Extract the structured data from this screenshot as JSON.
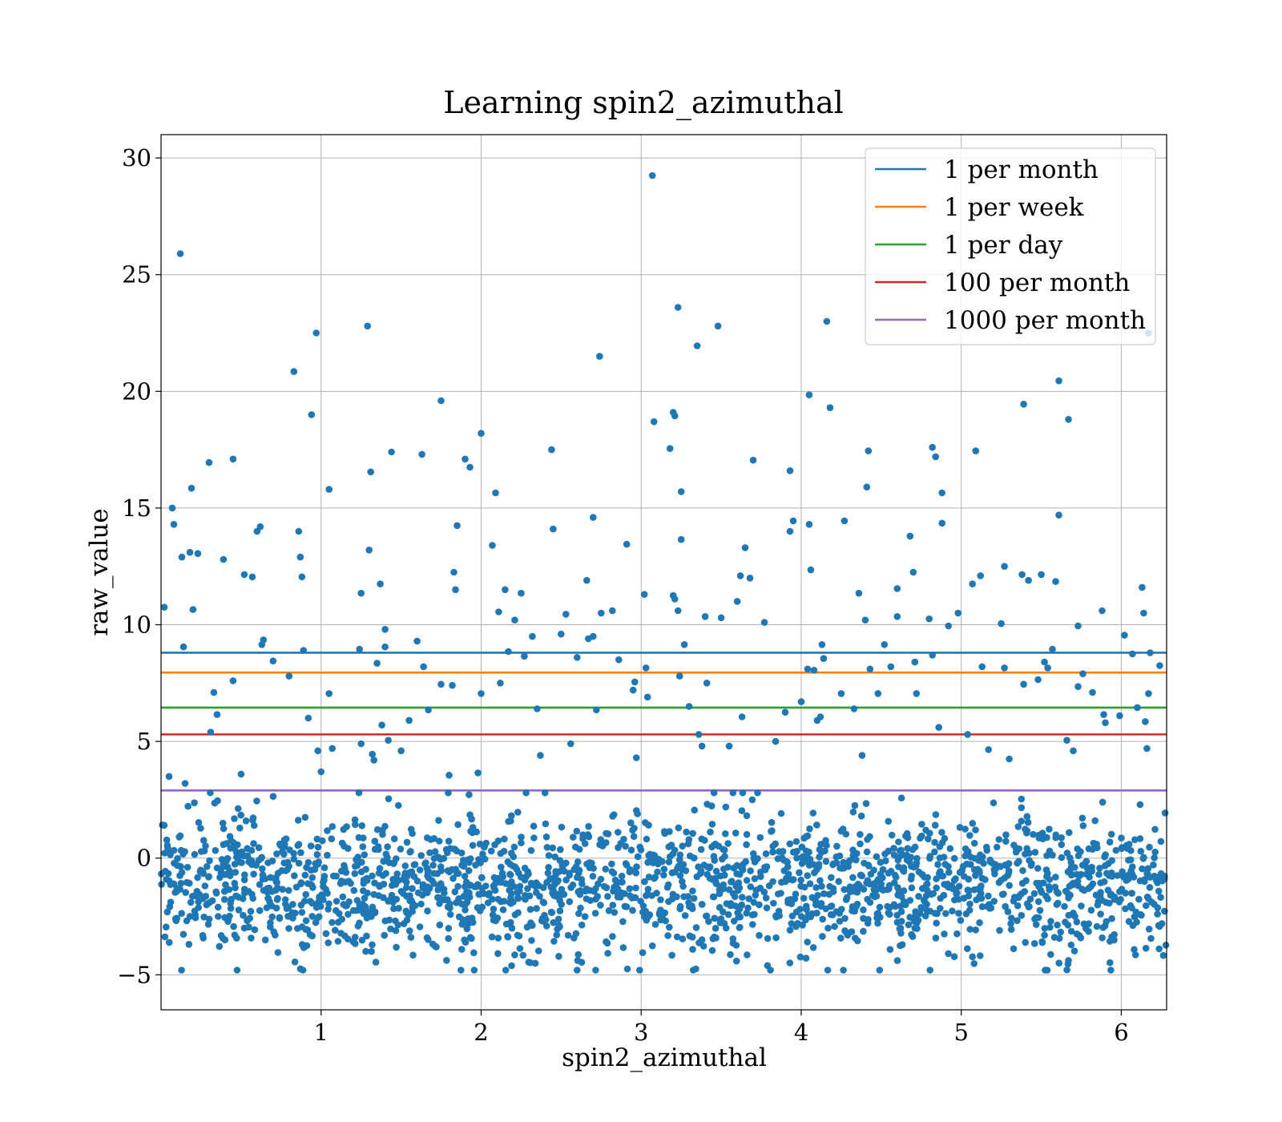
{
  "chart_data": {
    "type": "scatter",
    "title": "Learning spin2_azimuthal",
    "xlabel": "spin2_azimuthal",
    "ylabel": "raw_value",
    "xlim": [
      0,
      6.2832
    ],
    "ylim": [
      -6.5,
      31
    ],
    "xticks": [
      1,
      2,
      3,
      4,
      5,
      6
    ],
    "xtick_labels": [
      "1",
      "2",
      "3",
      "4",
      "5",
      "6"
    ],
    "yticks": [
      -5,
      0,
      5,
      10,
      15,
      20,
      25,
      30
    ],
    "ytick_labels": [
      "−5",
      "0",
      "5",
      "10",
      "15",
      "20",
      "25",
      "30"
    ],
    "grid": true,
    "legend_position": "top-right",
    "point_color": "#1f77b4",
    "thresholds": [
      {
        "name": "1 per month",
        "y": 8.8,
        "color": "#1f77b4"
      },
      {
        "name": "1 per week",
        "y": 7.95,
        "color": "#ff7f0e"
      },
      {
        "name": "1 per day",
        "y": 6.45,
        "color": "#2ca02c"
      },
      {
        "name": "100 per month",
        "y": 5.3,
        "color": "#d62728"
      },
      {
        "name": "1000 per month",
        "y": 2.9,
        "color": "#9467bd"
      }
    ],
    "outliers": [
      [
        0.02,
        10.75
      ],
      [
        0.05,
        3.5
      ],
      [
        0.07,
        15.0
      ],
      [
        0.08,
        14.3
      ],
      [
        0.12,
        25.9
      ],
      [
        0.13,
        12.9
      ],
      [
        0.14,
        9.05
      ],
      [
        0.15,
        3.2
      ],
      [
        0.18,
        13.1
      ],
      [
        0.19,
        15.85
      ],
      [
        0.2,
        10.65
      ],
      [
        0.23,
        13.05
      ],
      [
        0.3,
        16.95
      ],
      [
        0.31,
        5.4
      ],
      [
        0.33,
        7.1
      ],
      [
        0.35,
        6.15
      ],
      [
        0.39,
        12.8
      ],
      [
        0.45,
        7.6
      ],
      [
        0.45,
        17.1
      ],
      [
        0.5,
        3.6
      ],
      [
        0.52,
        12.15
      ],
      [
        0.57,
        12.05
      ],
      [
        0.6,
        14.0
      ],
      [
        0.62,
        14.2
      ],
      [
        0.63,
        9.15
      ],
      [
        0.64,
        9.35
      ],
      [
        0.7,
        8.45
      ],
      [
        0.8,
        7.8
      ],
      [
        0.83,
        20.85
      ],
      [
        0.86,
        14.0
      ],
      [
        0.87,
        12.9
      ],
      [
        0.88,
        12.05
      ],
      [
        0.89,
        8.9
      ],
      [
        0.92,
        6.0
      ],
      [
        0.94,
        19.0
      ],
      [
        0.97,
        22.5
      ],
      [
        0.98,
        4.6
      ],
      [
        1.0,
        3.7
      ],
      [
        1.05,
        15.8
      ],
      [
        1.05,
        7.05
      ],
      [
        1.07,
        4.7
      ],
      [
        1.24,
        8.95
      ],
      [
        1.25,
        11.35
      ],
      [
        1.25,
        4.9
      ],
      [
        1.29,
        22.8
      ],
      [
        1.3,
        13.2
      ],
      [
        1.31,
        16.55
      ],
      [
        1.32,
        4.45
      ],
      [
        1.33,
        4.2
      ],
      [
        1.35,
        8.35
      ],
      [
        1.37,
        11.75
      ],
      [
        1.38,
        5.7
      ],
      [
        1.4,
        9.8
      ],
      [
        1.4,
        9.05
      ],
      [
        1.42,
        5.05
      ],
      [
        1.44,
        17.4
      ],
      [
        1.5,
        4.6
      ],
      [
        1.55,
        5.9
      ],
      [
        1.6,
        9.3
      ],
      [
        1.63,
        17.3
      ],
      [
        1.64,
        8.2
      ],
      [
        1.67,
        6.35
      ],
      [
        1.75,
        19.6
      ],
      [
        1.75,
        7.45
      ],
      [
        1.8,
        3.55
      ],
      [
        1.82,
        7.4
      ],
      [
        1.83,
        12.25
      ],
      [
        1.84,
        11.5
      ],
      [
        1.85,
        14.25
      ],
      [
        1.9,
        17.1
      ],
      [
        1.93,
        16.75
      ],
      [
        1.98,
        3.65
      ],
      [
        2.0,
        7.05
      ],
      [
        2.0,
        18.2
      ],
      [
        2.07,
        13.4
      ],
      [
        2.09,
        15.65
      ],
      [
        2.11,
        10.55
      ],
      [
        2.12,
        7.5
      ],
      [
        2.15,
        11.5
      ],
      [
        2.17,
        8.85
      ],
      [
        2.21,
        10.2
      ],
      [
        2.25,
        11.35
      ],
      [
        2.27,
        8.65
      ],
      [
        2.32,
        9.5
      ],
      [
        2.35,
        6.4
      ],
      [
        2.37,
        4.4
      ],
      [
        2.44,
        17.5
      ],
      [
        2.45,
        14.1
      ],
      [
        2.5,
        9.6
      ],
      [
        2.53,
        10.45
      ],
      [
        2.56,
        4.9
      ],
      [
        2.6,
        8.6
      ],
      [
        2.66,
        11.9
      ],
      [
        2.67,
        9.4
      ],
      [
        2.7,
        9.5
      ],
      [
        2.7,
        14.6
      ],
      [
        2.72,
        6.35
      ],
      [
        2.74,
        21.5
      ],
      [
        2.75,
        10.5
      ],
      [
        2.82,
        10.6
      ],
      [
        2.86,
        8.5
      ],
      [
        2.91,
        13.45
      ],
      [
        2.95,
        7.2
      ],
      [
        2.96,
        7.55
      ],
      [
        2.97,
        4.3
      ],
      [
        3.02,
        11.3
      ],
      [
        3.03,
        8.15
      ],
      [
        3.04,
        6.9
      ],
      [
        3.07,
        29.25
      ],
      [
        3.08,
        18.7
      ],
      [
        3.18,
        17.55
      ],
      [
        3.2,
        11.25
      ],
      [
        3.2,
        19.1
      ],
      [
        3.21,
        11.1
      ],
      [
        3.21,
        18.95
      ],
      [
        3.23,
        23.6
      ],
      [
        3.23,
        10.6
      ],
      [
        3.24,
        7.8
      ],
      [
        3.25,
        15.7
      ],
      [
        3.25,
        13.65
      ],
      [
        3.27,
        9.15
      ],
      [
        3.3,
        6.5
      ],
      [
        3.35,
        21.95
      ],
      [
        3.36,
        5.3
      ],
      [
        3.38,
        4.8
      ],
      [
        3.4,
        10.35
      ],
      [
        3.41,
        7.5
      ],
      [
        3.48,
        22.8
      ],
      [
        3.5,
        10.3
      ],
      [
        3.55,
        4.8
      ],
      [
        3.6,
        11.0
      ],
      [
        3.62,
        12.1
      ],
      [
        3.63,
        6.05
      ],
      [
        3.65,
        13.3
      ],
      [
        3.68,
        12.0
      ],
      [
        3.7,
        17.05
      ],
      [
        3.77,
        10.1
      ],
      [
        3.84,
        5.0
      ],
      [
        3.9,
        6.25
      ],
      [
        3.93,
        16.6
      ],
      [
        3.93,
        14.0
      ],
      [
        3.95,
        14.45
      ],
      [
        4.0,
        6.7
      ],
      [
        4.04,
        8.1
      ],
      [
        4.05,
        19.85
      ],
      [
        4.05,
        14.3
      ],
      [
        4.06,
        12.35
      ],
      [
        4.08,
        8.05
      ],
      [
        4.1,
        5.9
      ],
      [
        4.12,
        6.05
      ],
      [
        4.13,
        9.15
      ],
      [
        4.14,
        8.55
      ],
      [
        4.16,
        23.0
      ],
      [
        4.18,
        19.3
      ],
      [
        4.25,
        7.05
      ],
      [
        4.27,
        14.45
      ],
      [
        4.33,
        6.4
      ],
      [
        4.36,
        11.35
      ],
      [
        4.38,
        4.4
      ],
      [
        4.4,
        10.2
      ],
      [
        4.41,
        15.9
      ],
      [
        4.42,
        17.45
      ],
      [
        4.43,
        8.1
      ],
      [
        4.48,
        7.05
      ],
      [
        4.52,
        9.15
      ],
      [
        4.56,
        8.2
      ],
      [
        4.6,
        11.55
      ],
      [
        4.6,
        10.35
      ],
      [
        4.68,
        13.8
      ],
      [
        4.7,
        12.25
      ],
      [
        4.71,
        8.4
      ],
      [
        4.72,
        7.05
      ],
      [
        4.8,
        10.25
      ],
      [
        4.82,
        8.7
      ],
      [
        4.82,
        17.6
      ],
      [
        4.84,
        17.2
      ],
      [
        4.86,
        5.6
      ],
      [
        4.88,
        15.65
      ],
      [
        4.88,
        14.35
      ],
      [
        4.92,
        9.95
      ],
      [
        4.98,
        10.5
      ],
      [
        5.04,
        5.3
      ],
      [
        5.07,
        11.75
      ],
      [
        5.09,
        17.45
      ],
      [
        5.12,
        12.1
      ],
      [
        5.13,
        8.2
      ],
      [
        5.17,
        4.65
      ],
      [
        5.25,
        10.05
      ],
      [
        5.27,
        12.5
      ],
      [
        5.27,
        8.15
      ],
      [
        5.3,
        4.25
      ],
      [
        5.38,
        12.15
      ],
      [
        5.39,
        19.45
      ],
      [
        5.39,
        7.45
      ],
      [
        5.42,
        11.9
      ],
      [
        5.48,
        7.65
      ],
      [
        5.5,
        12.15
      ],
      [
        5.52,
        8.4
      ],
      [
        5.54,
        8.15
      ],
      [
        5.57,
        8.95
      ],
      [
        5.59,
        11.85
      ],
      [
        5.61,
        20.45
      ],
      [
        5.61,
        14.7
      ],
      [
        5.66,
        5.05
      ],
      [
        5.67,
        18.8
      ],
      [
        5.7,
        4.6
      ],
      [
        5.73,
        9.95
      ],
      [
        5.73,
        7.35
      ],
      [
        5.76,
        7.9
      ],
      [
        5.82,
        7.1
      ],
      [
        5.88,
        10.6
      ],
      [
        5.89,
        6.15
      ],
      [
        5.9,
        5.8
      ],
      [
        5.99,
        6.1
      ],
      [
        6.02,
        9.55
      ],
      [
        6.07,
        8.75
      ],
      [
        6.1,
        6.45
      ],
      [
        6.13,
        11.6
      ],
      [
        6.14,
        10.5
      ],
      [
        6.15,
        5.85
      ],
      [
        6.16,
        4.7
      ],
      [
        6.17,
        7.05
      ],
      [
        6.17,
        22.5
      ],
      [
        6.18,
        8.8
      ],
      [
        6.24,
        8.25
      ]
    ],
    "bulk": {
      "count": 2050,
      "x_range": [
        0,
        6.28
      ],
      "mean_y": -1.1,
      "std_y": 1.45,
      "y_range": [
        -4.8,
        2.8
      ]
    }
  }
}
